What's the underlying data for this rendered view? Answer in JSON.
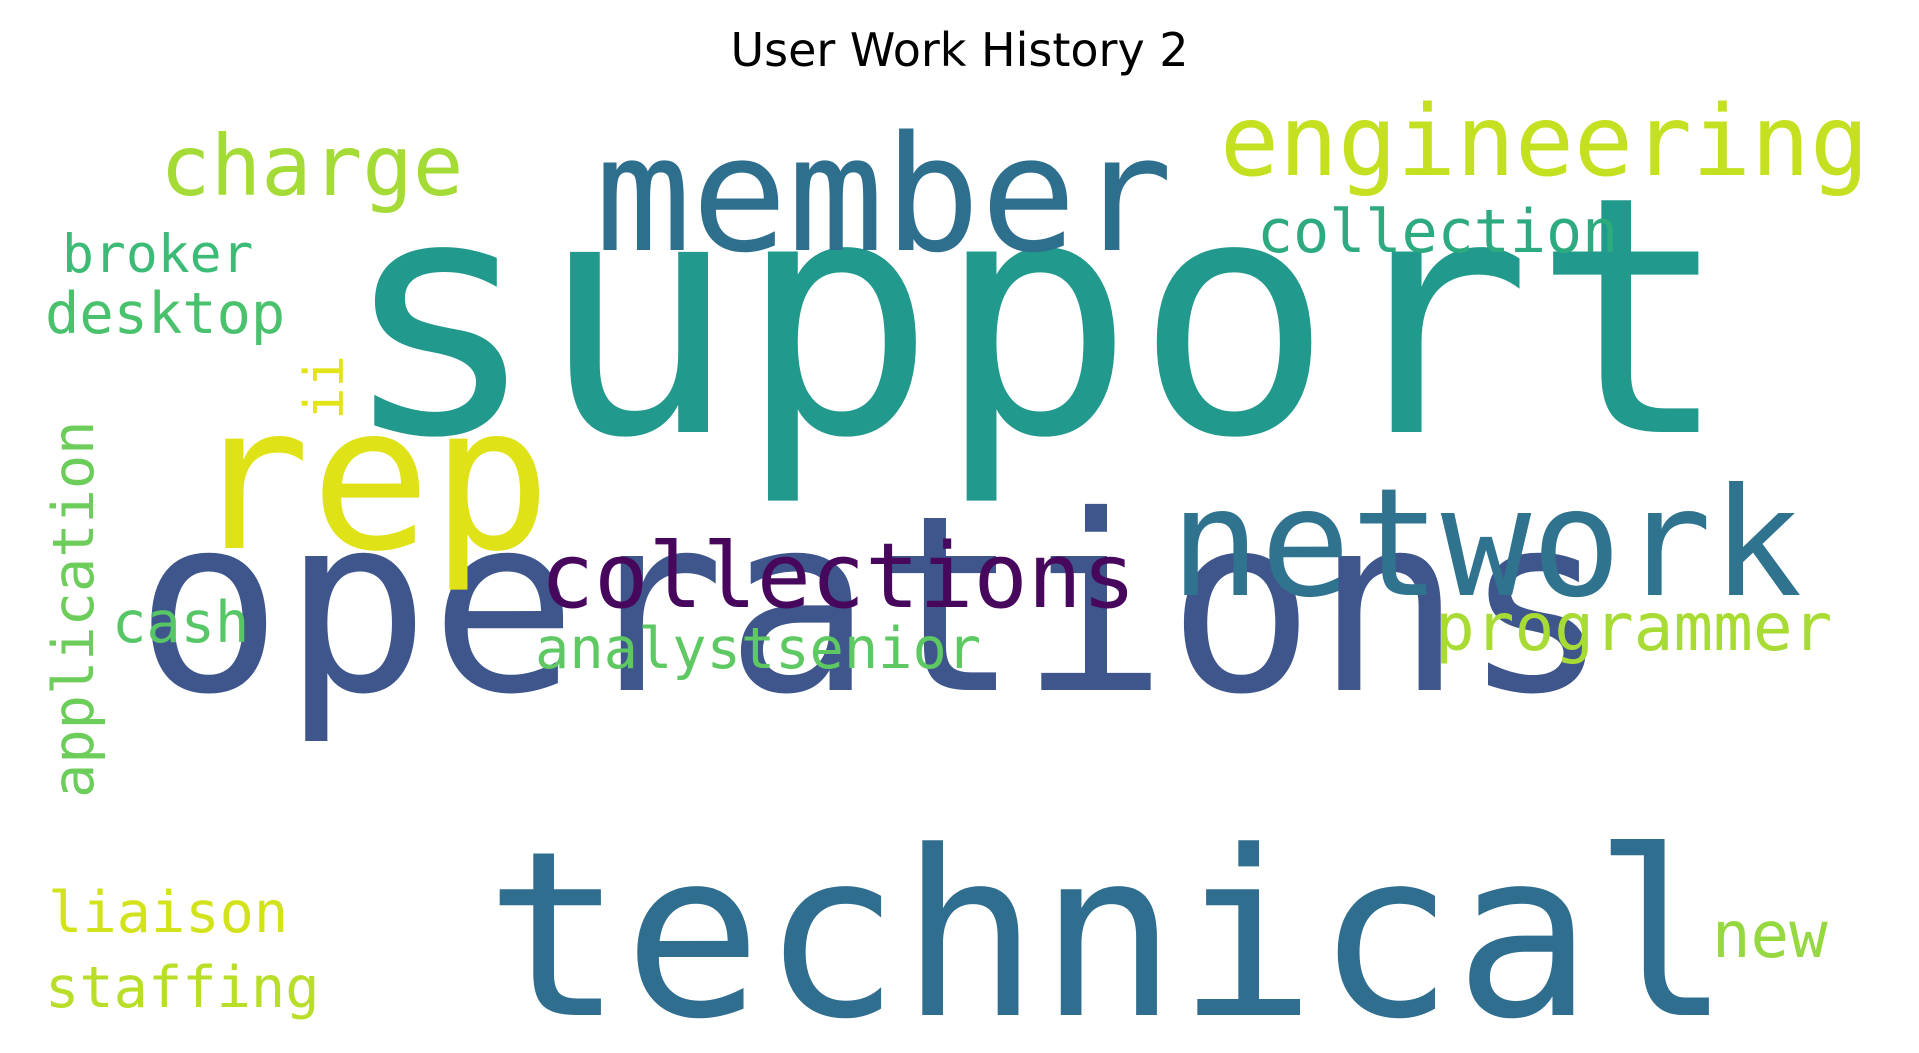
{
  "chart_data": {
    "type": "wordcloud",
    "title": "User Work History 2",
    "words": [
      {
        "text": "support",
        "weight": 1.0,
        "color": "#21998c",
        "orientation": "horizontal"
      },
      {
        "text": "operations",
        "weight": 0.93,
        "color": "#3e568c",
        "orientation": "horizontal"
      },
      {
        "text": "technical",
        "weight": 0.66,
        "color": "#2f6e8f",
        "orientation": "horizontal"
      },
      {
        "text": "rep",
        "weight": 0.56,
        "color": "#dfe217",
        "orientation": "horizontal"
      },
      {
        "text": "member",
        "weight": 0.48,
        "color": "#2e6f8e",
        "orientation": "horizontal"
      },
      {
        "text": "network",
        "weight": 0.44,
        "color": "#2f738e",
        "orientation": "horizontal"
      },
      {
        "text": "engineering",
        "weight": 0.33,
        "color": "#c5e021",
        "orientation": "horizontal"
      },
      {
        "text": "collections",
        "weight": 0.28,
        "color": "#47075c",
        "orientation": "horizontal"
      },
      {
        "text": "charge",
        "weight": 0.27,
        "color": "#a5db36",
        "orientation": "horizontal"
      },
      {
        "text": "programmer",
        "weight": 0.2,
        "color": "#a8db34",
        "orientation": "horizontal"
      },
      {
        "text": "collection",
        "weight": 0.18,
        "color": "#2eaa7f",
        "orientation": "horizontal"
      },
      {
        "text": "analystsenior",
        "weight": 0.18,
        "color": "#5ec962",
        "orientation": "horizontal"
      },
      {
        "text": "application",
        "weight": 0.18,
        "color": "#6ccd5a",
        "orientation": "vertical"
      },
      {
        "text": "desktop",
        "weight": 0.18,
        "color": "#4ac16d",
        "orientation": "horizontal"
      },
      {
        "text": "new",
        "weight": 0.18,
        "color": "#95d840",
        "orientation": "horizontal"
      },
      {
        "text": "liaison",
        "weight": 0.18,
        "color": "#d2e21b",
        "orientation": "horizontal"
      },
      {
        "text": "staffing",
        "weight": 0.18,
        "color": "#b8de29",
        "orientation": "horizontal"
      },
      {
        "text": "broker",
        "weight": 0.15,
        "color": "#3bbb75",
        "orientation": "horizontal"
      },
      {
        "text": "cash",
        "weight": 0.15,
        "color": "#56c667",
        "orientation": "horizontal"
      },
      {
        "text": "ii",
        "weight": 0.15,
        "color": "#e3e418",
        "orientation": "vertical"
      }
    ]
  }
}
